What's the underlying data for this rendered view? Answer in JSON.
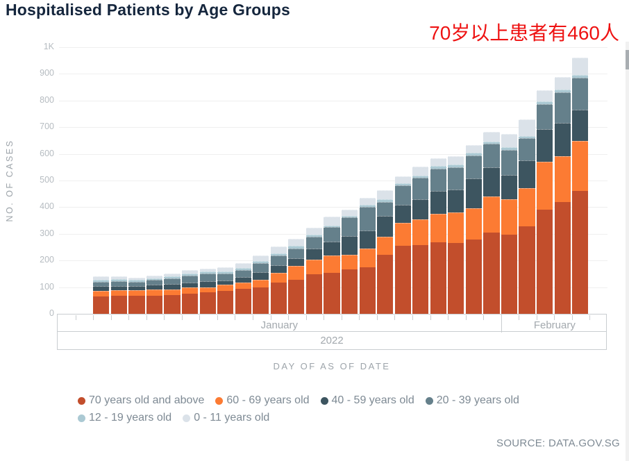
{
  "header": {
    "title": "Hospitalised Patients by Age Groups",
    "annotation": {
      "text": "70岁以上患者有460人",
      "color": "#ee1212"
    }
  },
  "source_text": "SOURCE: DATA.GOV.SG",
  "chart_data": {
    "type": "bar",
    "subtype": "stacked-vertical",
    "title": "Hospitalised Patients by Age Groups",
    "xlabel": "DAY OF AS OF DATE",
    "ylabel": "NO. OF CASES",
    "ylim": [
      0,
      1000
    ],
    "ytick_labels": [
      "0",
      "100",
      "200",
      "300",
      "400",
      "500",
      "600",
      "700",
      "800",
      "900",
      "1K"
    ],
    "grid": true,
    "legend_position": "bottom",
    "x_axis_hierarchy": {
      "year": "2022",
      "months": [
        {
          "label": "January",
          "day_slots": 25,
          "bar_slots": [
            2,
            24
          ]
        },
        {
          "label": "February",
          "day_slots": 6,
          "bar_slots": [
            0,
            4
          ]
        }
      ],
      "total_day_slots": 31,
      "note_empty_slots": "first two slots and last slot have no bars"
    },
    "bar_count": 28,
    "series": [
      {
        "name": "70 years old and above",
        "color": "#c24e2c",
        "values": [
          66,
          68,
          68,
          69,
          71,
          75,
          80,
          85,
          94,
          99,
          116,
          128,
          148,
          153,
          166,
          174,
          222,
          254,
          257,
          267,
          266,
          279,
          305,
          298,
          328,
          391,
          419,
          460
        ]
      },
      {
        "name": "60 - 69 years old",
        "color": "#fc7b33",
        "values": [
          19,
          20,
          20,
          21,
          21,
          23,
          20,
          24,
          22,
          29,
          38,
          51,
          55,
          67,
          56,
          70,
          67,
          86,
          98,
          107,
          114,
          117,
          134,
          132,
          143,
          180,
          172,
          189
        ]
      },
      {
        "name": "40 - 59 years old",
        "color": "#3d5560",
        "values": [
          18,
          17,
          17,
          19,
          20,
          20,
          22,
          15,
          21,
          29,
          29,
          30,
          43,
          50,
          71,
          69,
          79,
          70,
          75,
          87,
          87,
          113,
          111,
          92,
          105,
          122,
          126,
          116
        ]
      },
      {
        "name": "20 - 39 years old",
        "color": "#65808b",
        "values": [
          18,
          17,
          16,
          18,
          21,
          26,
          28,
          26,
          26,
          32,
          35,
          37,
          44,
          55,
          68,
          87,
          52,
          71,
          80,
          84,
          83,
          85,
          87,
          93,
          82,
          93,
          114,
          121
        ]
      },
      {
        "name": "12 - 19 years old",
        "color": "#abc9d3",
        "values": [
          7,
          8,
          7,
          7,
          7,
          8,
          8,
          10,
          8,
          8,
          10,
          10,
          8,
          7,
          7,
          8,
          9,
          9,
          9,
          9,
          9,
          9,
          10,
          10,
          10,
          10,
          10,
          9
        ]
      },
      {
        "name": "0 - 11 years old",
        "color": "#dbe2e9",
        "values": [
          12,
          10,
          8,
          10,
          10,
          11,
          12,
          15,
          18,
          23,
          25,
          25,
          26,
          33,
          23,
          27,
          35,
          27,
          33,
          29,
          32,
          31,
          35,
          50,
          62,
          42,
          48,
          65
        ]
      }
    ],
    "annotations": [
      {
        "text": "70岁以上患者有460人",
        "refers_to": "last bar, 70+ segment = 460",
        "color": "#ee1212"
      }
    ]
  },
  "layout_colors": {
    "title_text": "#15263d",
    "axis_text": "#9da4aa",
    "tick_text": "#b6bcc1",
    "legend_text": "#7e8a94",
    "gridline": "#efefef",
    "axis_border": "#c9cdd0"
  }
}
